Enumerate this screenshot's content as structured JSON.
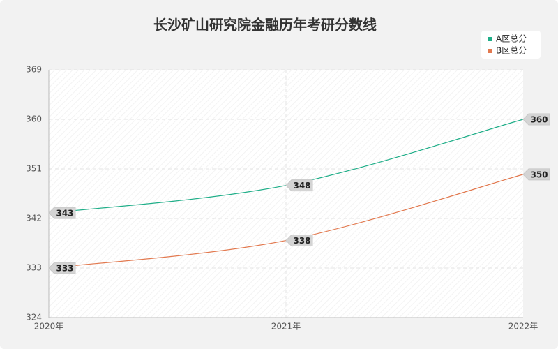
{
  "chart_data": {
    "type": "line",
    "title": "长沙矿山研究院金融历年考研分数线",
    "categories": [
      "2020年",
      "2021年",
      "2022年"
    ],
    "series": [
      {
        "name": "A区总分",
        "color": "#1fae88",
        "values": [
          343,
          348,
          360
        ]
      },
      {
        "name": "B区总分",
        "color": "#e2794f",
        "values": [
          333,
          338,
          350
        ]
      }
    ],
    "ylim": [
      324,
      369
    ],
    "yticks": [
      324,
      333,
      342,
      351,
      360,
      369
    ],
    "grid": true,
    "legend": "top-right"
  }
}
